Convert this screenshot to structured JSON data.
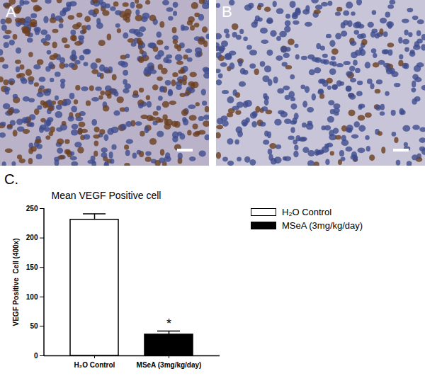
{
  "image_panels": [
    {
      "label": "A"
    },
    {
      "label": "B"
    }
  ],
  "chart_data": {
    "type": "bar",
    "panel_label": "C.",
    "title": "Mean VEGF Positive cell",
    "y_label": "VEGF Positive  Cell (400x)",
    "categories": [
      "H₂O Control",
      "MSeA (3mg/kg/day)"
    ],
    "values": [
      231,
      36
    ],
    "errors": [
      10,
      6
    ],
    "colors": [
      "#ffffff",
      "#000000"
    ],
    "ylim": [
      0,
      250
    ],
    "yticks": [
      0,
      50,
      100,
      150,
      200,
      250
    ],
    "grid": false,
    "legend": "right",
    "annotations": [
      {
        "category": "MSeA (3mg/kg/day)",
        "text": "*"
      }
    ]
  }
}
